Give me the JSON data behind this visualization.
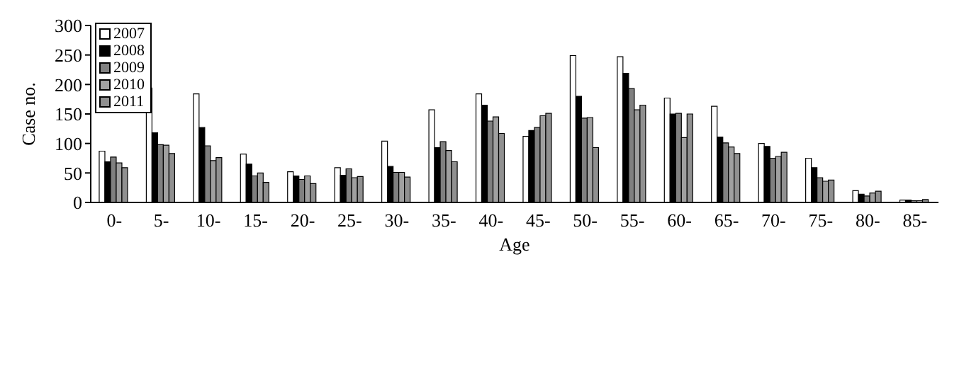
{
  "chart_data": {
    "type": "bar",
    "xlabel": "Age",
    "ylabel": "Case no.",
    "categories": [
      "0-",
      "5-",
      "10-",
      "15-",
      "20-",
      "25-",
      "30-",
      "35-",
      "40-",
      "45-",
      "50-",
      "55-",
      "60-",
      "65-",
      "70-",
      "75-",
      "80-",
      "85-"
    ],
    "series": [
      {
        "name": "2007",
        "color": "#ffffff",
        "values": [
          87,
          194,
          184,
          82,
          52,
          59,
          104,
          157,
          184,
          112,
          249,
          247,
          177,
          163,
          100,
          75,
          20,
          4
        ]
      },
      {
        "name": "2008",
        "color": "#000000",
        "values": [
          69,
          118,
          127,
          65,
          45,
          46,
          61,
          93,
          165,
          122,
          180,
          219,
          150,
          111,
          95,
          59,
          14,
          4
        ]
      },
      {
        "name": "2009",
        "color": "#808080",
        "values": [
          77,
          98,
          96,
          45,
          39,
          57,
          51,
          103,
          138,
          127,
          143,
          193,
          151,
          101,
          75,
          42,
          11,
          3
        ]
      },
      {
        "name": "2010",
        "color": "#a0a0a0",
        "values": [
          67,
          97,
          71,
          50,
          45,
          42,
          51,
          88,
          145,
          147,
          144,
          157,
          110,
          94,
          78,
          36,
          16,
          3
        ]
      },
      {
        "name": "2011",
        "color": "#909090",
        "values": [
          59,
          83,
          76,
          34,
          32,
          44,
          43,
          69,
          117,
          151,
          93,
          165,
          150,
          83,
          85,
          38,
          19,
          5
        ]
      }
    ],
    "ylim": [
      0,
      300
    ],
    "yticks": [
      0,
      50,
      100,
      150,
      200,
      250,
      300
    ],
    "grid": false,
    "legend": "top left"
  }
}
